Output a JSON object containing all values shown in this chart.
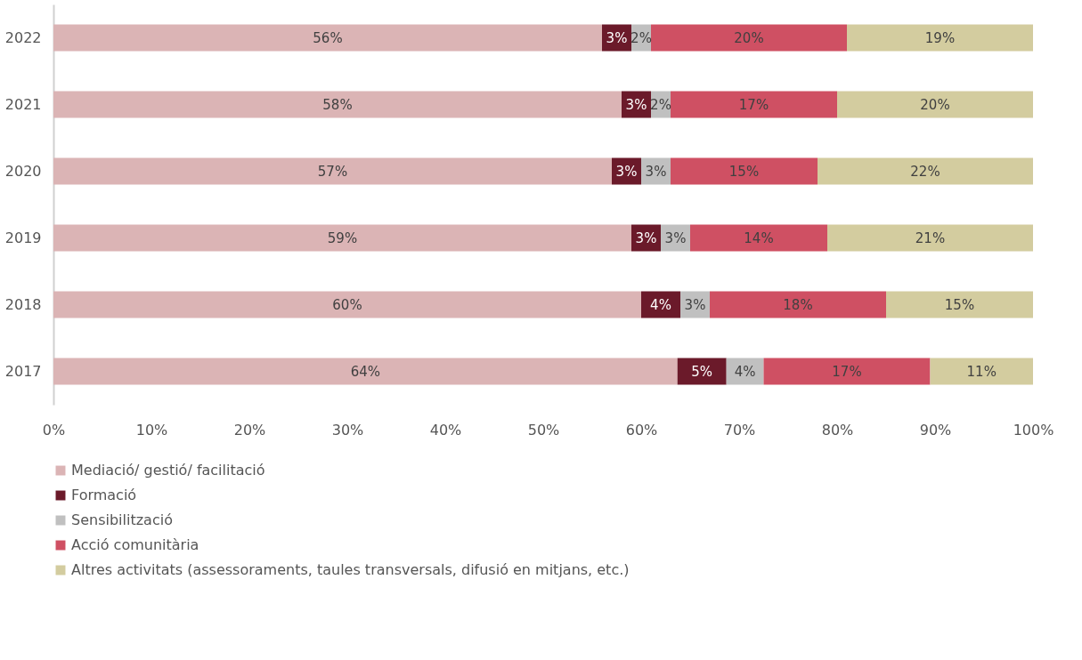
{
  "chart_data": {
    "type": "bar",
    "orientation": "horizontal",
    "stacked": true,
    "categories": [
      "2022",
      "2021",
      "2020",
      "2019",
      "2018",
      "2017"
    ],
    "series": [
      {
        "name": "Mediació/ gestió/ facilitació",
        "color": "#dbb4b5",
        "values": [
          56,
          58,
          57,
          59,
          60,
          63.7
        ],
        "value_labels": [
          "56%",
          "58%",
          "57%",
          "59%",
          "60%",
          "64%"
        ]
      },
      {
        "name": "Formació",
        "color": "#6b1a2a",
        "values": [
          3,
          3,
          3,
          3,
          4,
          5
        ],
        "value_labels": [
          "3%",
          "3%",
          "3%",
          "3%",
          "4%",
          "5%"
        ]
      },
      {
        "name": "Sensibilització",
        "color": "#c0c0c0",
        "values": [
          2,
          2,
          3,
          3,
          3,
          3.8
        ],
        "value_labels": [
          "2%",
          "2%",
          "3%",
          "3%",
          "3%",
          "4%"
        ]
      },
      {
        "name": "Acció comunitària",
        "color": "#cf5063",
        "values": [
          20,
          17,
          15,
          14,
          18,
          17
        ],
        "value_labels": [
          "20%",
          "17%",
          "15%",
          "14%",
          "18%",
          "17%"
        ]
      },
      {
        "name": "Altres activitats (assessoraments, taules transversals, difusió en mitjans, etc.)",
        "color": "#d3cc9f",
        "values": [
          19,
          20,
          22,
          21,
          15,
          10.5
        ],
        "value_labels": [
          "19%",
          "20%",
          "22%",
          "21%",
          "15%",
          "11%"
        ]
      }
    ],
    "xlim": [
      0,
      100
    ],
    "xticks": [
      {
        "value": 0,
        "label": "0%"
      },
      {
        "value": 10,
        "label": "10%"
      },
      {
        "value": 20,
        "label": "20%"
      },
      {
        "value": 30,
        "label": "30%"
      },
      {
        "value": 40,
        "label": "40%"
      },
      {
        "value": 50,
        "label": "50%"
      },
      {
        "value": 60,
        "label": "60%"
      },
      {
        "value": 70,
        "label": "70%"
      },
      {
        "value": 80,
        "label": "80%"
      },
      {
        "value": 90,
        "label": "90%"
      },
      {
        "value": 100,
        "label": "100%"
      }
    ],
    "grid": false,
    "legend": "bottom"
  }
}
